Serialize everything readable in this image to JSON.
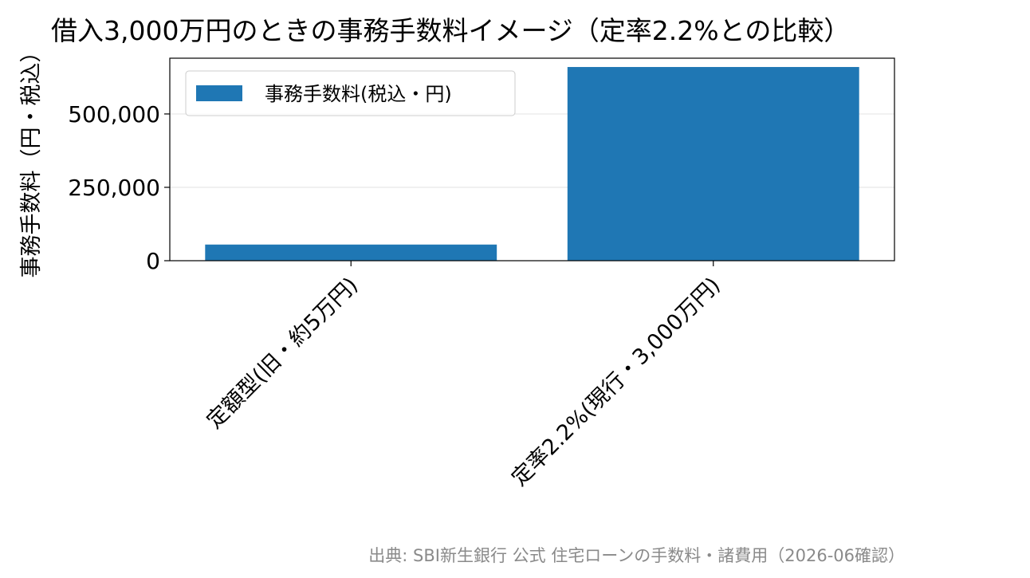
{
  "chart_data": {
    "type": "bar",
    "title": "借入3,000万円のときの事務手数料イメージ（定率2.2%との比較）",
    "xlabel": "",
    "ylabel": "事務手数料（円・税込）",
    "categories": [
      "定額型(旧・約5万円)",
      "定率2.2%(現行・3,000万円)"
    ],
    "series": [
      {
        "name": "事務手数料(税込・円)",
        "values": [
          55000,
          660000
        ]
      }
    ],
    "ylim": [
      0,
      690000
    ],
    "yticks": [
      0,
      250000,
      500000
    ],
    "ytick_labels": [
      "0",
      "250,000",
      "500,000"
    ],
    "grid": "y",
    "legend": "top-left",
    "bar_color": "#1f77b4",
    "source": "出典: SBI新生銀行 公式 住宅ローンの手数料・諸費用（2026-06確認）"
  }
}
